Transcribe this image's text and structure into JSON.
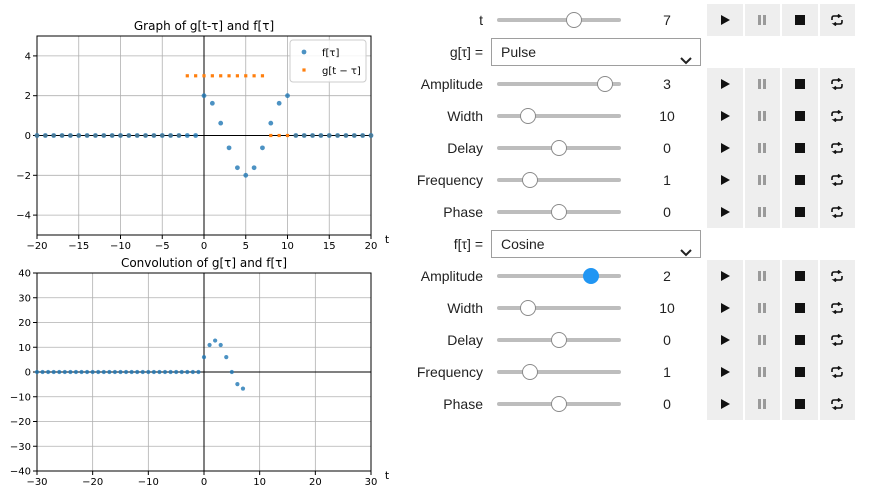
{
  "colors": {
    "series_f": "#1f77b4",
    "series_g": "#ff7f0e",
    "accent": "#2196f3",
    "button_bg": "#eeeeee",
    "track": "#bdbdbd"
  },
  "chart_data": [
    {
      "type": "scatter",
      "title": "Graph of g[t-τ] and f[τ]",
      "xlabel": "t",
      "ylabel": "",
      "xlim": [
        -20,
        20
      ],
      "ylim": [
        -5,
        5
      ],
      "xticks": [
        -20,
        -15,
        -10,
        -5,
        0,
        5,
        10,
        15,
        20
      ],
      "yticks": [
        -4,
        -2,
        0,
        2,
        4
      ],
      "xtick_labels": [
        "−20",
        "−15",
        "−10",
        "−5",
        "0",
        "5",
        "10",
        "15",
        "20"
      ],
      "ytick_labels": [
        "−4",
        "−2",
        "0",
        "2",
        "4"
      ],
      "grid": true,
      "legend": "top-right",
      "series": [
        {
          "name": "f[τ]",
          "label": "f[τ]",
          "color": "#1f77b4",
          "marker": "circle",
          "x": [
            -20,
            -19,
            -18,
            -17,
            -16,
            -15,
            -14,
            -13,
            -12,
            -11,
            -10,
            -9,
            -8,
            -7,
            -6,
            -5,
            -4,
            -3,
            -2,
            -1,
            0,
            1,
            2,
            3,
            4,
            5,
            6,
            7,
            8,
            9,
            10,
            11,
            12,
            13,
            14,
            15,
            16,
            17,
            18,
            19,
            20
          ],
          "y": [
            0,
            0,
            0,
            0,
            0,
            0,
            0,
            0,
            0,
            0,
            0,
            0,
            0,
            0,
            0,
            0,
            0,
            0,
            0,
            0,
            2,
            1.62,
            0.62,
            -0.62,
            -1.62,
            -2,
            -1.62,
            -0.62,
            0.62,
            1.62,
            2,
            0,
            0,
            0,
            0,
            0,
            0,
            0,
            0,
            0,
            0
          ]
        },
        {
          "name": "g[t − τ]",
          "label": "g[t − τ]",
          "color": "#ff7f0e",
          "marker": "square",
          "x": [
            -20,
            -19,
            -18,
            -17,
            -16,
            -15,
            -14,
            -13,
            -12,
            -11,
            -10,
            -9,
            -8,
            -7,
            -6,
            -5,
            -4,
            -3,
            -2,
            -1,
            0,
            1,
            2,
            3,
            4,
            5,
            6,
            7,
            8,
            9,
            10,
            11,
            12,
            13,
            14,
            15,
            16,
            17,
            18,
            19,
            20
          ],
          "y": [
            0,
            0,
            0,
            0,
            0,
            0,
            0,
            0,
            0,
            0,
            0,
            0,
            0,
            0,
            0,
            0,
            0,
            0,
            3,
            3,
            3,
            3,
            3,
            3,
            3,
            3,
            3,
            3,
            0,
            0,
            0,
            0,
            0,
            0,
            0,
            0,
            0,
            0,
            0,
            0,
            0
          ]
        }
      ]
    },
    {
      "type": "scatter",
      "title": "Convolution of g[τ] and f[τ]",
      "xlabel": "t",
      "ylabel": "",
      "xlim": [
        -30,
        30
      ],
      "ylim": [
        -40,
        40
      ],
      "xticks": [
        -30,
        -20,
        -10,
        0,
        10,
        20,
        30
      ],
      "yticks": [
        -40,
        -30,
        -20,
        -10,
        0,
        10,
        20,
        30,
        40
      ],
      "xtick_labels": [
        "−30",
        "−20",
        "−10",
        "0",
        "10",
        "20",
        "30"
      ],
      "ytick_labels": [
        "−40",
        "−30",
        "−20",
        "−10",
        "0",
        "10",
        "20",
        "30",
        "40"
      ],
      "grid": true,
      "series": [
        {
          "color": "#1f77b4",
          "marker": "circle",
          "x": [
            -30,
            -29,
            -28,
            -27,
            -26,
            -25,
            -24,
            -23,
            -22,
            -21,
            -20,
            -19,
            -18,
            -17,
            -16,
            -15,
            -14,
            -13,
            -12,
            -11,
            -10,
            -9,
            -8,
            -7,
            -6,
            -5,
            -4,
            -3,
            -2,
            -1,
            0,
            1,
            2,
            3,
            4,
            5,
            6,
            7
          ],
          "y": [
            0,
            0,
            0,
            0,
            0,
            0,
            0,
            0,
            0,
            0,
            0,
            0,
            0,
            0,
            0,
            0,
            0,
            0,
            0,
            0,
            0,
            0,
            0,
            0,
            0,
            0,
            0,
            0,
            0,
            0,
            6,
            10.9,
            12.7,
            10.9,
            6,
            0,
            -4.9,
            -6.7
          ]
        }
      ]
    }
  ],
  "controls": {
    "t": {
      "label": "t",
      "value": "7",
      "fraction": 0.62
    },
    "g_select": {
      "label": "g[τ] =",
      "value": "Pulse"
    },
    "g_params": [
      {
        "label": "Amplitude",
        "value": "3",
        "fraction": 0.87
      },
      {
        "label": "Width",
        "value": "10",
        "fraction": 0.25
      },
      {
        "label": "Delay",
        "value": "0",
        "fraction": 0.5
      },
      {
        "label": "Frequency",
        "value": "1",
        "fraction": 0.27
      },
      {
        "label": "Phase",
        "value": "0",
        "fraction": 0.5
      }
    ],
    "f_select": {
      "label": "f[τ] =",
      "value": "Cosine"
    },
    "f_params": [
      {
        "label": "Amplitude",
        "value": "2",
        "fraction": 0.76
      },
      {
        "label": "Width",
        "value": "10",
        "fraction": 0.25
      },
      {
        "label": "Delay",
        "value": "0",
        "fraction": 0.5
      },
      {
        "label": "Frequency",
        "value": "1",
        "fraction": 0.27
      },
      {
        "label": "Phase",
        "value": "0",
        "fraction": 0.5
      }
    ],
    "buttons": {
      "play": "play-icon",
      "pause": "pause-icon",
      "stop": "stop-icon",
      "loop": "loop-icon"
    }
  }
}
